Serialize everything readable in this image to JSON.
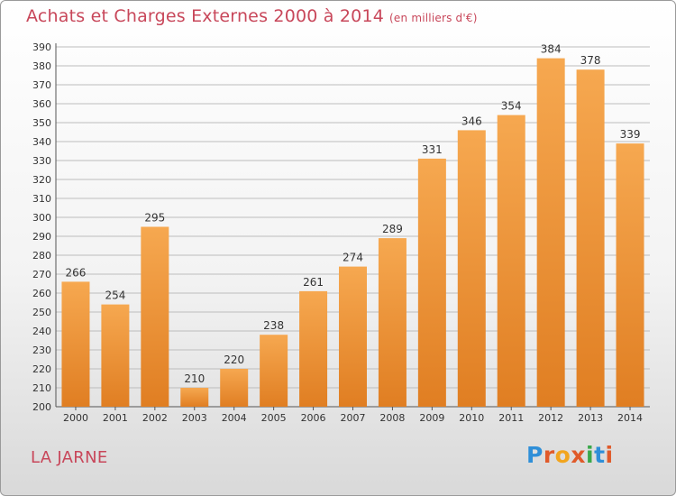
{
  "title": "Achats et Charges Externes 2000 à 2014",
  "subtitle": "(en milliers d'€)",
  "place": "LA JARNE",
  "logo_text": "Proxiti",
  "colors": {
    "title": "#c8475a",
    "bar_light": "#f6a850",
    "bar_dark": "#e07e22",
    "grid": "#bdbdbd",
    "logo": [
      "#2f8fd8",
      "#e05a2a",
      "#f2a51e",
      "#e05a2a",
      "#3aa84a",
      "#2f8fd8",
      "#e05a2a"
    ]
  },
  "chart_data": {
    "type": "bar",
    "categories": [
      "2000",
      "2001",
      "2002",
      "2003",
      "2004",
      "2005",
      "2006",
      "2007",
      "2008",
      "2009",
      "2010",
      "2011",
      "2012",
      "2013",
      "2014"
    ],
    "values": [
      266,
      254,
      295,
      210,
      220,
      238,
      261,
      274,
      289,
      331,
      346,
      354,
      384,
      378,
      339
    ],
    "ylim": [
      200,
      390
    ],
    "yticks": [
      200,
      210,
      220,
      230,
      240,
      250,
      260,
      270,
      280,
      290,
      300,
      310,
      320,
      330,
      340,
      350,
      360,
      370,
      380,
      390
    ],
    "grid": true,
    "data_labels": true
  }
}
